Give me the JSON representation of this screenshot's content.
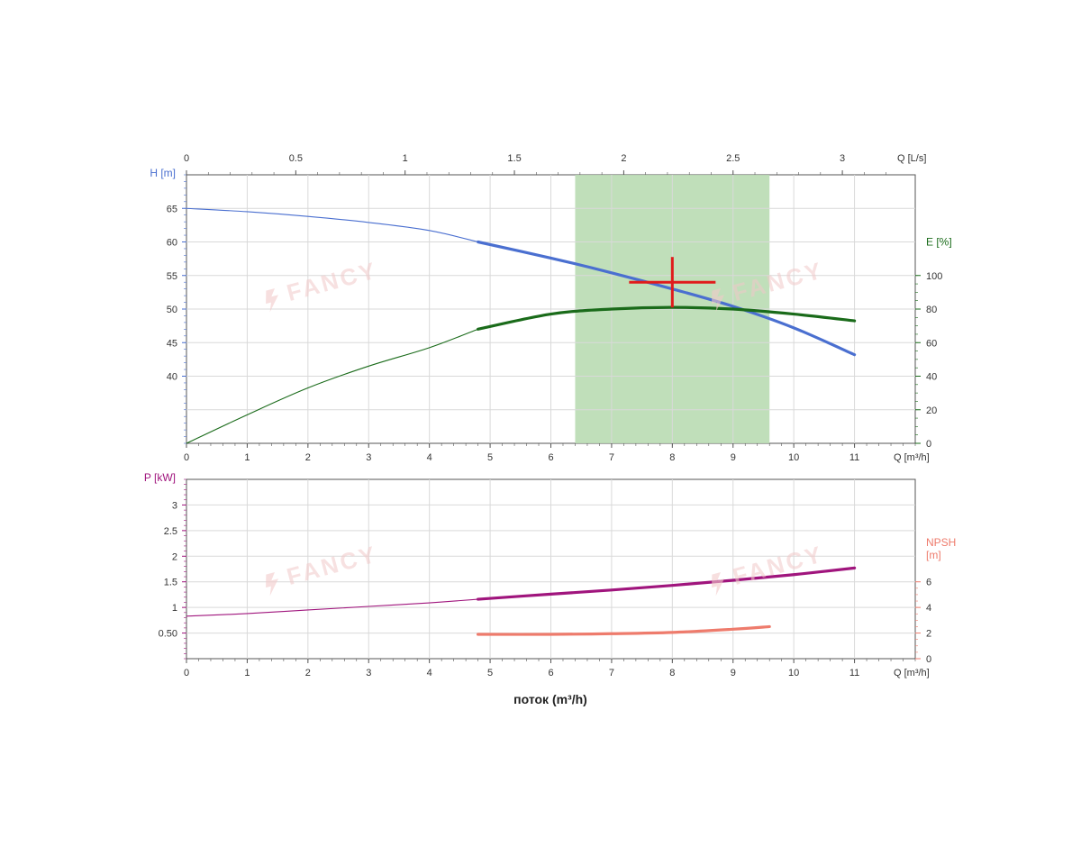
{
  "chart_data": [
    {
      "type": "line",
      "panel": "head-efficiency",
      "x_axis": {
        "label": "Q [m³/h]",
        "range": [
          0,
          12
        ],
        "ticks": [
          0,
          1,
          2,
          3,
          4,
          5,
          6,
          7,
          8,
          9,
          10,
          11
        ]
      },
      "x2_axis": {
        "label": "Q [L/s]",
        "ticks": [
          0,
          0.5,
          1,
          1.5,
          2,
          2.5,
          3
        ],
        "tick_labels": [
          "0",
          "0.5",
          "1",
          "1.5",
          "2",
          "2.5",
          "3"
        ]
      },
      "y_axis": {
        "label": "H [m]",
        "range": [
          30,
          70
        ],
        "ticks": [
          40,
          45,
          50,
          55,
          60,
          65
        ]
      },
      "y2_axis": {
        "label": "E [%]",
        "range": [
          0,
          160
        ],
        "ticks": [
          0,
          20,
          40,
          60,
          80,
          100
        ]
      },
      "grid": true,
      "operating_range": {
        "x_min": 6.4,
        "x_max": 9.6,
        "color": "#b9dcb3"
      },
      "duty_point": {
        "x": 8,
        "y": 54,
        "color": "#e01b1b"
      },
      "series": [
        {
          "axis": "left",
          "color": "#4a6fd0",
          "points": [
            [
              0,
              65
            ],
            [
              1,
              64.5
            ],
            [
              2,
              63.8
            ],
            [
              3,
              62.9
            ],
            [
              4,
              61.7
            ],
            [
              4.8,
              60.0
            ],
            [
              6,
              57.6
            ],
            [
              7,
              55.4
            ],
            [
              8,
              53.0
            ],
            [
              9,
              50.4
            ],
            [
              10,
              47.2
            ],
            [
              11,
              43.2
            ]
          ]
        },
        {
          "axis": "right",
          "color": "#1a6b1a",
          "points": [
            [
              0,
              0
            ],
            [
              1,
              17
            ],
            [
              2,
              33
            ],
            [
              3,
              46
            ],
            [
              4,
              57
            ],
            [
              4.8,
              68
            ],
            [
              6,
              77
            ],
            [
              7,
              80
            ],
            [
              8,
              81
            ],
            [
              9,
              80
            ],
            [
              10,
              77
            ],
            [
              11,
              73
            ]
          ]
        }
      ]
    },
    {
      "type": "line",
      "panel": "power-npsh",
      "x_axis": {
        "label": "Q [m³/h]",
        "range": [
          0,
          12
        ],
        "ticks": [
          0,
          1,
          2,
          3,
          4,
          5,
          6,
          7,
          8,
          9,
          10,
          11
        ]
      },
      "y_axis": {
        "label": "P [kW]",
        "range": [
          0,
          3.5
        ],
        "ticks": [
          0.5,
          1,
          1.5,
          2,
          2.5,
          3
        ],
        "tick_labels": [
          "0.50",
          "1",
          "1.5",
          "2",
          "2.5",
          "3"
        ]
      },
      "y2_axis": {
        "label": "NPSH\n[m]",
        "range": [
          0,
          14
        ],
        "ticks": [
          0,
          2,
          4,
          6
        ]
      },
      "grid": true,
      "series": [
        {
          "axis": "left",
          "color": "#a0157d",
          "points": [
            [
              0,
              0.83
            ],
            [
              1,
              0.88
            ],
            [
              2,
              0.95
            ],
            [
              3,
              1.02
            ],
            [
              4,
              1.09
            ],
            [
              4.8,
              1.16
            ],
            [
              6,
              1.26
            ],
            [
              7,
              1.34
            ],
            [
              8,
              1.43
            ],
            [
              9,
              1.53
            ],
            [
              10,
              1.64
            ],
            [
              11,
              1.77
            ]
          ]
        },
        {
          "axis": "right",
          "color": "#ee7b6c",
          "points": [
            [
              4.8,
              1.9
            ],
            [
              6,
              1.9
            ],
            [
              7,
              1.95
            ],
            [
              8,
              2.05
            ],
            [
              9,
              2.3
            ],
            [
              9.6,
              2.5
            ]
          ]
        }
      ]
    }
  ],
  "xlabel_common": "поток (m³/h)",
  "watermark": "FANCY"
}
